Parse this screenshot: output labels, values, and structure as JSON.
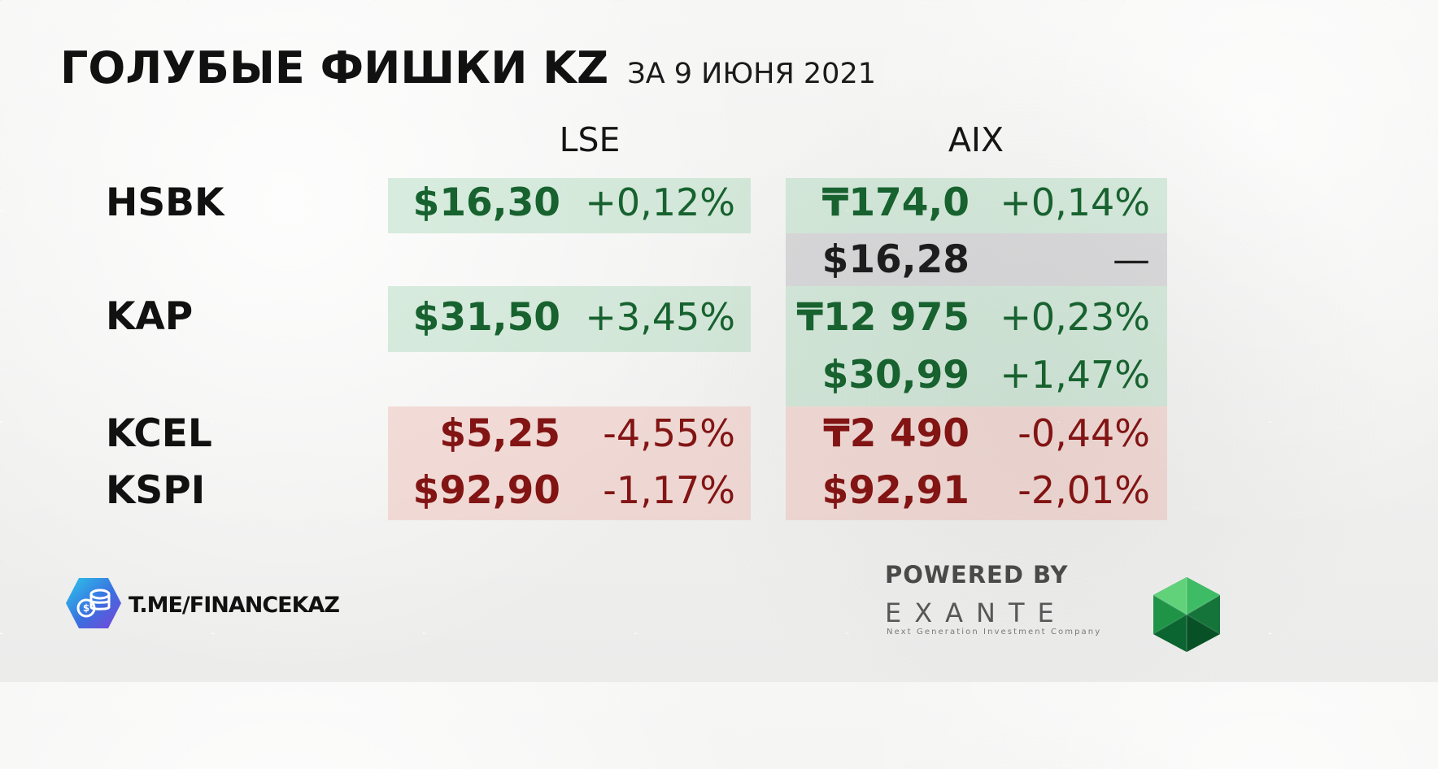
{
  "title": {
    "main": "ГОЛУБЫЕ ФИШКИ KZ",
    "sub": "ЗА 9 ИЮНЯ 2021"
  },
  "columns": {
    "lse": "LSE",
    "aix": "AIX"
  },
  "tickers": {
    "hsbk": "HSBK",
    "kap": "KAP",
    "kcel": "KCEL",
    "kspi": "KSPI"
  },
  "lse_rows": {
    "hsbk": {
      "price": "$16,30",
      "change": "+0,12%"
    },
    "kap": {
      "price": "$31,50",
      "change": "+3,45%"
    },
    "kcel": {
      "price": "$5,25",
      "change": "-4,55%"
    },
    "kspi": {
      "price": "$92,90",
      "change": "-1,17%"
    }
  },
  "aix_rows": {
    "hsbk_kzt": {
      "price": "₸174,0",
      "change": "+0,14%"
    },
    "hsbk_usd": {
      "price": "$16,28",
      "change": "—"
    },
    "kap_kzt": {
      "price": "₸12 975",
      "change": "+0,23%"
    },
    "kap_usd": {
      "price": "$30,99",
      "change": "+1,47%"
    },
    "kcel_kzt": {
      "price": "₸2 490",
      "change": "-0,44%"
    },
    "kspi_usd": {
      "price": "$92,91",
      "change": "-2,01%"
    }
  },
  "branding": {
    "channel": "T.ME/FINANCEKAZ",
    "powered_by": "POWERED BY",
    "company": "EXANTE",
    "tagline": "Next Generation Investment Company"
  },
  "colors": {
    "positive": "#17622f",
    "negative": "#821414",
    "neutral": "#1d1d1d"
  },
  "icons": {
    "channel_logo": "coin-stack-icon",
    "brand_logo": "emerald-icon"
  }
}
